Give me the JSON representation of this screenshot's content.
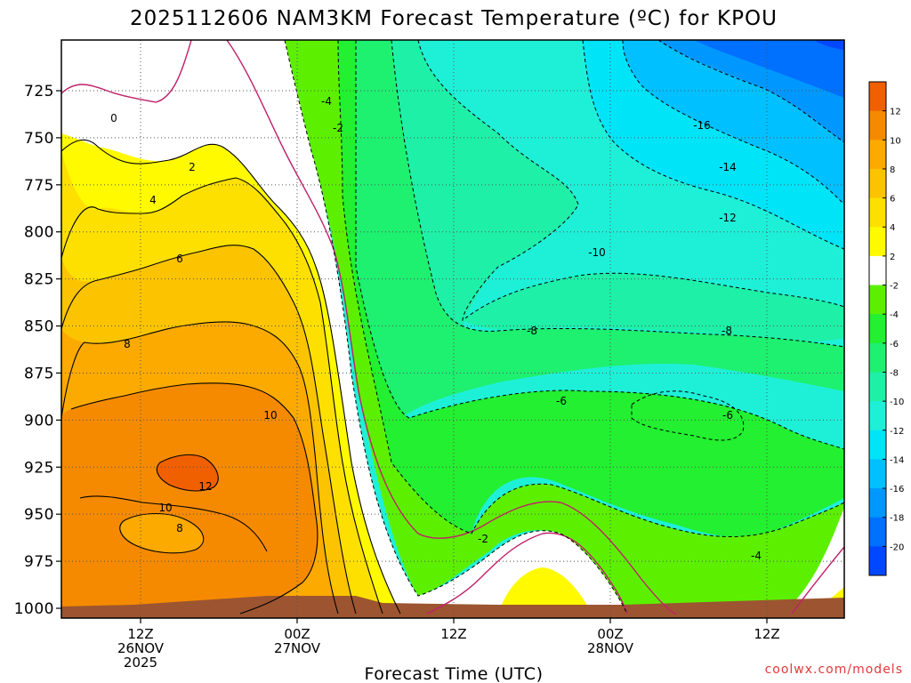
{
  "chart_data": {
    "type": "heatmap",
    "title": "2025112606 NAM3KM Forecast Temperature (ºC) for KPOU",
    "xlabel": "Forecast Time (UTC)",
    "ylabel": "",
    "credit": "coolwx.com/models",
    "y_ticks": [
      "725",
      "750",
      "775",
      "800",
      "825",
      "850",
      "875",
      "900",
      "925",
      "950",
      "975",
      "1000"
    ],
    "x_ticks": [
      {
        "line1": "12Z",
        "line2": "26NOV",
        "line3": "2025"
      },
      {
        "line1": "00Z",
        "line2": "27NOV",
        "line3": ""
      },
      {
        "line1": "12Z",
        "line2": "",
        "line3": ""
      },
      {
        "line1": "00Z",
        "line2": "28NOV",
        "line3": ""
      },
      {
        "line1": "12Z",
        "line2": "",
        "line3": ""
      }
    ],
    "colorbar": {
      "labels": [
        "12",
        "10",
        "8",
        "6",
        "4",
        "2",
        "-2",
        "-4",
        "-6",
        "-8",
        "-10",
        "-12",
        "-14",
        "-16",
        "-18",
        "-20"
      ],
      "colors": [
        "#f06000",
        "#f58a00",
        "#fcaa00",
        "#fcc400",
        "#fde000",
        "#fffa00",
        "#ffffff",
        "#5cf000",
        "#22f030",
        "#1ef070",
        "#1ef0a8",
        "#1ef0d8",
        "#00e4f8",
        "#00c0ff",
        "#0098ff",
        "#0070ff",
        "#0048ff"
      ]
    },
    "contour_labels": [
      "0",
      "2",
      "4",
      "6",
      "8",
      "10",
      "12",
      "10",
      "8",
      "-4",
      "-2",
      "-2",
      "-16",
      "-14",
      "-12",
      "-10",
      "-8",
      "-8",
      "-6",
      "-6",
      "-4"
    ]
  }
}
